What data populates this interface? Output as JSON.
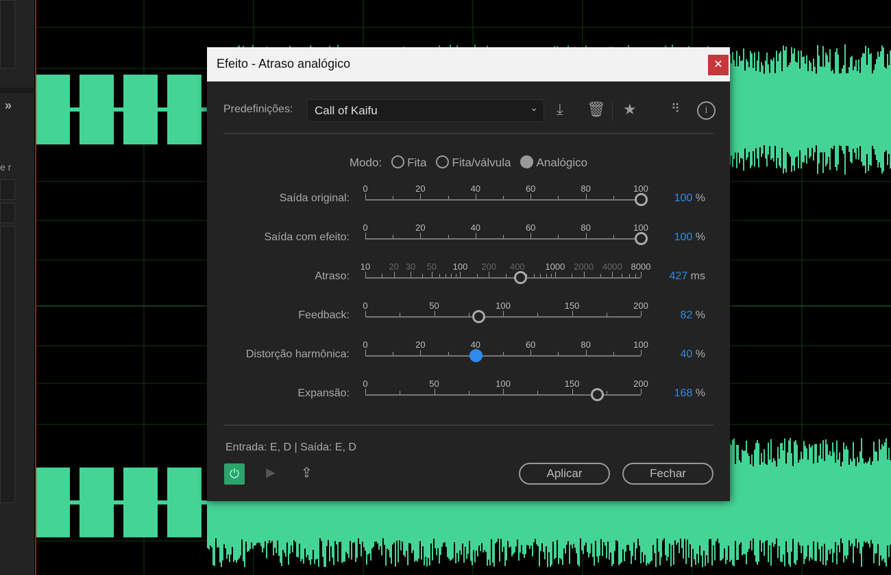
{
  "colors": {
    "waveform": "#44d496",
    "accent": "#2d8ceb",
    "close": "#c4383c",
    "power": "#2ea36a",
    "playhead": "#b01818"
  },
  "left_panel": {
    "truncated_label": "e r",
    "chevron": "»"
  },
  "dialog": {
    "title": "Efeito - Atraso analógico",
    "close_icon": "close-icon",
    "presets": {
      "label": "Predefinições:",
      "value": "Call of Kaifu"
    },
    "toolbar_icons": [
      "download-icon",
      "trash-icon",
      "star-icon",
      "routing-icon",
      "info-icon"
    ],
    "mode": {
      "label": "Modo:",
      "options": [
        {
          "label": "Fita",
          "selected": false
        },
        {
          "label": "Fita/válvula",
          "selected": false
        },
        {
          "label": "Analógico",
          "selected": true
        }
      ]
    },
    "sliders": [
      {
        "label": "Saída original:",
        "ticks": [
          "0",
          "20",
          "40",
          "60",
          "80",
          "100"
        ],
        "min": 0,
        "max": 100,
        "value": "100",
        "unit": "%"
      },
      {
        "label": "Saída com efeito:",
        "ticks": [
          "0",
          "20",
          "40",
          "60",
          "80",
          "100"
        ],
        "min": 0,
        "max": 100,
        "value": "100",
        "unit": "%"
      },
      {
        "label": "Atraso:",
        "scale": "log",
        "ticks": [
          "10",
          "20",
          "30",
          "50",
          "100",
          "200",
          "400",
          "1000",
          "2000",
          "4000",
          "8000"
        ],
        "bold_ticks": [
          "10",
          "100",
          "1000",
          "8000"
        ],
        "min": 10,
        "max": 8000,
        "value": "427",
        "unit": "ms"
      },
      {
        "label": "Feedback:",
        "ticks": [
          "0",
          "50",
          "100",
          "150",
          "200"
        ],
        "min": 0,
        "max": 200,
        "value": "82",
        "unit": "%"
      },
      {
        "label": "Distorção harmônica:",
        "ticks": [
          "0",
          "20",
          "40",
          "60",
          "80",
          "100"
        ],
        "min": 0,
        "max": 100,
        "value": "40",
        "unit": "%",
        "active": true
      },
      {
        "label": "Expansão:",
        "ticks": [
          "0",
          "50",
          "100",
          "150",
          "200"
        ],
        "min": 0,
        "max": 200,
        "value": "168",
        "unit": "%"
      }
    ],
    "io": "Entrada: E, D | Saída: E, D",
    "power_on": true,
    "apply": "Aplicar",
    "close": "Fechar"
  }
}
